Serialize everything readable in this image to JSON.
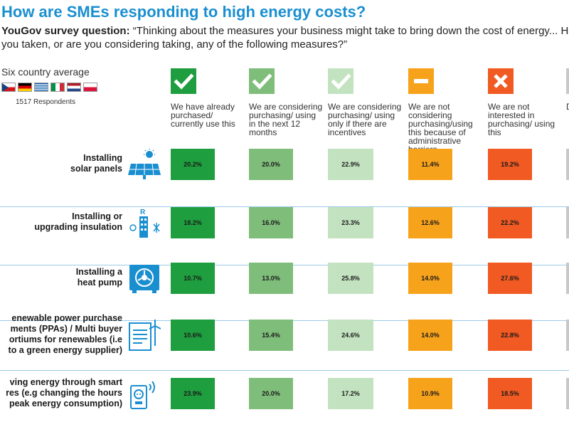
{
  "title": "How are SMEs responding to high energy costs?",
  "question": {
    "prefix": "YouGov survey question:",
    "text": "“Thinking about the measures your business might take to bring down the cost of energy... Have you taken, or are you considering taking, any of the following measures?”"
  },
  "sidebar": {
    "average_label": "Six country average",
    "respondents": "1517 Respondents"
  },
  "columns": [
    {
      "label": "We have already purchased/ currently use this",
      "icon": "check-icon",
      "color": "#1e9e3e"
    },
    {
      "label": "We are considering purchasing/ using in the next 12 months",
      "icon": "check-icon",
      "color": "#7fbd7a"
    },
    {
      "label": "We are considering purchasing/ using only if there are incentives",
      "icon": "check-icon",
      "color": "#c3e3c0"
    },
    {
      "label": "We are not considering purchasing/using this because of administrative barriers",
      "icon": "minus-icon",
      "color": "#f7a21b"
    },
    {
      "label": "We are not interested in purchasing/ using this",
      "icon": "cross-icon",
      "color": "#f15a22"
    },
    {
      "label": "D k",
      "icon": "grey-icon",
      "color": "#c8c8c8"
    }
  ],
  "chart_data": {
    "type": "table",
    "title": "How are SMEs responding to high energy costs?",
    "categories": [
      "Installing solar panels",
      "Installing or upgrading insulation",
      "Installing a heat pump",
      "enewable power purchase ments (PPAs) / Multi buyer ortiums for renewables (i.e to a green energy supplier)",
      "ving energy through smart res (e.g changing the hours peak energy consumption)"
    ],
    "row_lines": [
      [
        "Installing",
        "solar panels"
      ],
      [
        "Installing or",
        "upgrading insulation"
      ],
      [
        "Installing a",
        "heat pump"
      ],
      [
        "enewable power purchase",
        "ments (PPAs) / Multi buyer",
        "ortiums for renewables (i.e",
        "to a green energy supplier)"
      ],
      [
        "ving energy through smart",
        "res (e.g changing the hours",
        "peak energy consumption)"
      ]
    ],
    "row_icons": [
      "solar-panel-icon",
      "insulation-icon",
      "heat-pump-icon",
      "ppa-document-icon",
      "smart-plug-icon"
    ],
    "series": [
      {
        "name": "We have already purchased/ currently use this",
        "values": [
          20.2,
          18.2,
          10.7,
          10.6,
          23.9
        ]
      },
      {
        "name": "We are considering purchasing/ using in the next 12 months",
        "values": [
          20.0,
          16.0,
          13.0,
          15.4,
          20.0
        ]
      },
      {
        "name": "We are considering purchasing/ using only if there are incentives",
        "values": [
          22.9,
          23.3,
          25.8,
          24.6,
          17.2
        ]
      },
      {
        "name": "We are not considering purchasing/using this because of administrative barriers",
        "values": [
          11.4,
          12.6,
          14.0,
          14.0,
          10.9
        ]
      },
      {
        "name": "We are not interested in purchasing/ using this",
        "values": [
          19.2,
          22.2,
          27.6,
          22.8,
          18.5
        ]
      }
    ],
    "value_labels": [
      [
        "20.2%",
        "20.0%",
        "22.9%",
        "11.4%",
        "19.2%"
      ],
      [
        "18.2%",
        "16.0%",
        "23.3%",
        "12.6%",
        "22.2%"
      ],
      [
        "10.7%",
        "13.0%",
        "25.8%",
        "14.0%",
        "27.6%"
      ],
      [
        "10.6%",
        "15.4%",
        "24.6%",
        "14.0%",
        "22.8%"
      ],
      [
        "23.9%",
        "20.0%",
        "17.2%",
        "10.9%",
        "18.5%"
      ]
    ]
  }
}
